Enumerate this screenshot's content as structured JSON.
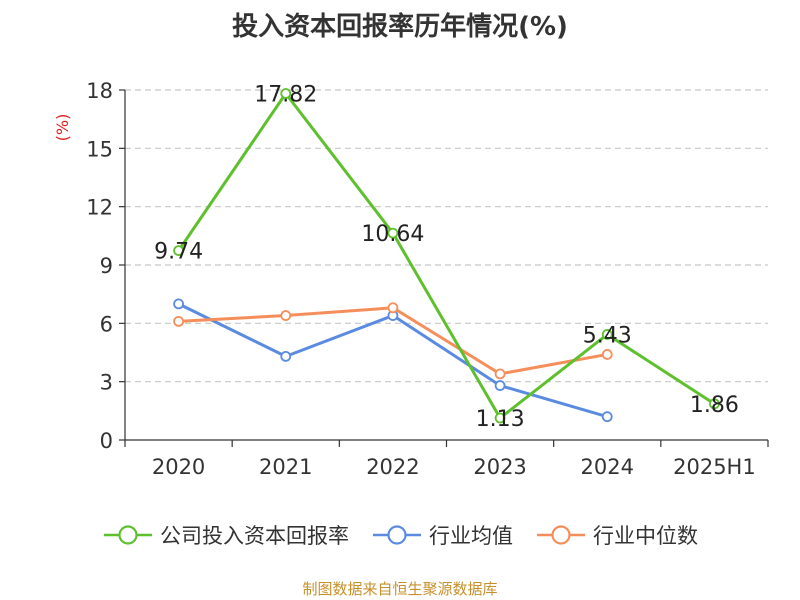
{
  "title": "投入资本回报率历年情况(%)",
  "source": "制图数据来自恒生聚源数据库",
  "chart_data": {
    "type": "line",
    "ylabel": "(%)",
    "ylim": [
      0,
      18
    ],
    "yticks": [
      0,
      3,
      6,
      9,
      12,
      15,
      18
    ],
    "ytick_labels": [
      "0",
      "3",
      "6",
      "9",
      "12",
      "15",
      "18"
    ],
    "categories": [
      "2020",
      "2021",
      "2022",
      "2023",
      "2024",
      "2025H1"
    ],
    "grid": "horizontal dashed",
    "legend_position": "bottom",
    "series": [
      {
        "name": "公司投入资本回报率",
        "color": "#5ec02d",
        "values": [
          9.74,
          17.82,
          10.64,
          1.13,
          5.43,
          1.86
        ],
        "labels": [
          "9.74",
          "17.82",
          "10.64",
          "1.13",
          "5.43",
          "1.86"
        ]
      },
      {
        "name": "行业均值",
        "color": "#5b8be0",
        "values": [
          7.0,
          4.3,
          6.4,
          2.8,
          1.2,
          null
        ]
      },
      {
        "name": "行业中位数",
        "color": "#f58e5a",
        "values": [
          6.1,
          6.4,
          6.8,
          3.4,
          4.4,
          null
        ]
      }
    ]
  }
}
